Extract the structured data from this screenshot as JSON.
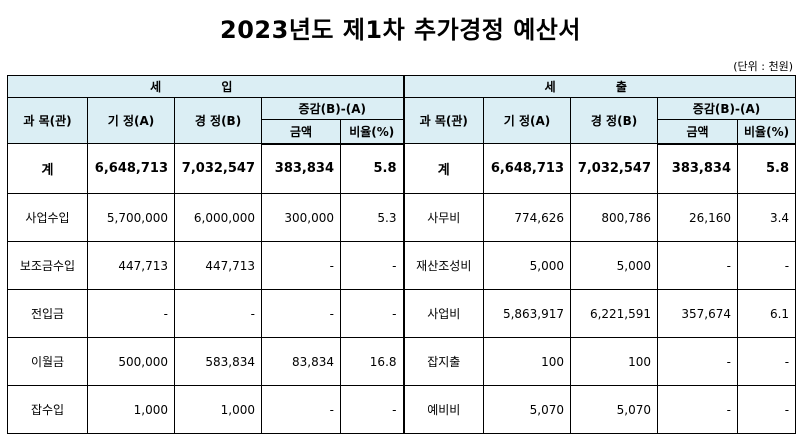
{
  "title": "2023년도 제1차 추가경정 예산서",
  "unit": "(단위 : 천원)",
  "headers": {
    "revenue": "세 입",
    "expenditure": "세 출",
    "item": "과 목(관)",
    "existing": "기 정(A)",
    "revised": "경 정(B)",
    "change": "증감(B)-(A)",
    "amount": "금액",
    "rate": "비율(%)"
  },
  "total": {
    "label": "계",
    "rev_a": "6,648,713",
    "rev_b": "7,032,547",
    "rev_amt": "383,834",
    "rev_rate": "5.8",
    "exp_label": "계",
    "exp_a": "6,648,713",
    "exp_b": "7,032,547",
    "exp_amt": "383,834",
    "exp_rate": "5.8"
  },
  "rows": [
    {
      "rev_item": "사업수입",
      "rev_a": "5,700,000",
      "rev_b": "6,000,000",
      "rev_amt": "300,000",
      "rev_rate": "5.3",
      "exp_item": "사무비",
      "exp_a": "774,626",
      "exp_b": "800,786",
      "exp_amt": "26,160",
      "exp_rate": "3.4"
    },
    {
      "rev_item": "보조금수입",
      "rev_a": "447,713",
      "rev_b": "447,713",
      "rev_amt": "-",
      "rev_rate": "-",
      "exp_item": "재산조성비",
      "exp_a": "5,000",
      "exp_b": "5,000",
      "exp_amt": "-",
      "exp_rate": "-"
    },
    {
      "rev_item": "전입금",
      "rev_a": "-",
      "rev_b": "-",
      "rev_amt": "-",
      "rev_rate": "-",
      "exp_item": "사업비",
      "exp_a": "5,863,917",
      "exp_b": "6,221,591",
      "exp_amt": "357,674",
      "exp_rate": "6.1"
    },
    {
      "rev_item": "이월금",
      "rev_a": "500,000",
      "rev_b": "583,834",
      "rev_amt": "83,834",
      "rev_rate": "16.8",
      "exp_item": "잡지출",
      "exp_a": "100",
      "exp_b": "100",
      "exp_amt": "-",
      "exp_rate": "-"
    },
    {
      "rev_item": "잡수입",
      "rev_a": "1,000",
      "rev_b": "1,000",
      "rev_amt": "-",
      "rev_rate": "-",
      "exp_item": "예비비",
      "exp_a": "5,070",
      "exp_b": "5,070",
      "exp_amt": "-",
      "exp_rate": "-"
    }
  ]
}
